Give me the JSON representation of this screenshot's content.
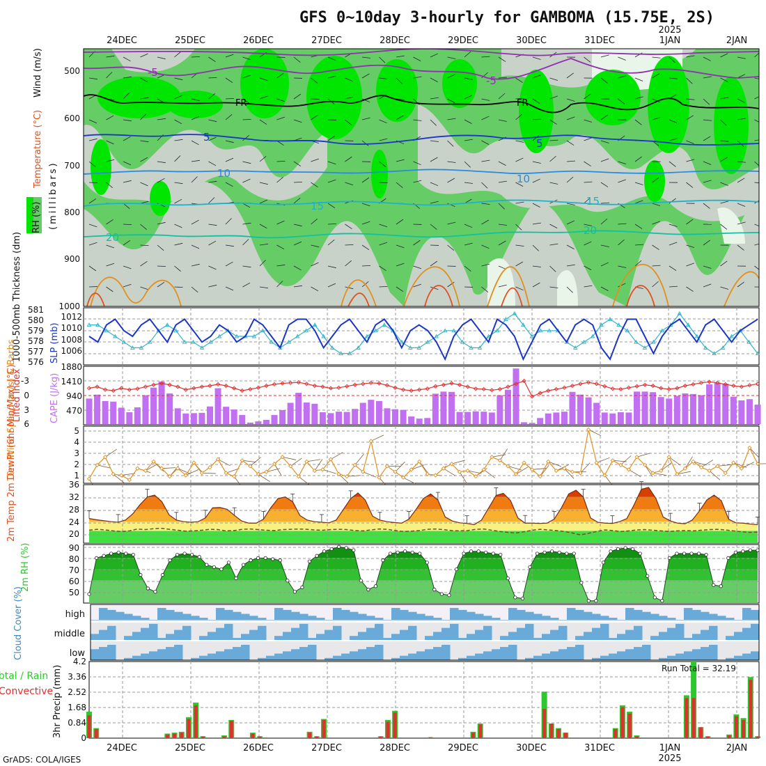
{
  "title": "GFS 0~10day 3-hourly for GAMBOMA (15.75E, 2S)",
  "footer": "GrADS: COLA/IGES",
  "dates": [
    "24DEC",
    "25DEC",
    "26DEC",
    "27DEC",
    "28DEC",
    "29DEC",
    "30DEC",
    "31DEC",
    "1JAN",
    "2JAN"
  ],
  "year_label": "2025",
  "colors": {
    "rh_dark": "#00e600",
    "rh_mid": "#66cc66",
    "rh_light": "#99dd99",
    "rh_gray": "#c8d2c8",
    "rh_pale": "#eaf5ea",
    "slp": "#1a35c8",
    "thickness": "#33b5c8",
    "cape": "#c070f0",
    "lifted_index": "#e03030",
    "wind10": "#e09020",
    "temp_dark": "#d84000",
    "temp_mid": "#f07b10",
    "temp_light": "#f8b030",
    "temp_pale": "#f8f080",
    "dewpt_band": "#40e040",
    "cloud": "#6aaad8",
    "precip_total": "#2ec82e",
    "precip_conv": "#e03030"
  },
  "labels": {
    "wind": "Wind (m/s)",
    "temperature": "Temperature (°C)",
    "rh": "RH (%)",
    "millibars": "(millibars)",
    "thickness": "1000-500mb Thickness (dm)",
    "slp": "SLP (mb)",
    "lifted_index": "Lifted Index",
    "cape": "CAPE (J/kg)",
    "wind10": "10m Wind Speed (m/s) & Barbs",
    "temp2m": "2m Temp 2m DewPt (6hr Min/Max) (°C)",
    "rh2m": "2m RH (%)",
    "cloud": "Cloud Cover (%)",
    "precip_side": "Total / Rain Convective",
    "precip_axis": "3hr Precip (mm)",
    "run_total": "Run Total = 32.19",
    "contour_labels": [
      "-5",
      "-5",
      "FR",
      "FR",
      "5",
      "5",
      "10",
      "10",
      "15",
      "15",
      "20",
      "20"
    ]
  },
  "chart_data": [
    {
      "type": "heatmap",
      "name": "upper_air_rh_temp_wind",
      "ylabel": "(millibars)",
      "y_ticks": [
        500,
        600,
        700,
        800,
        900,
        1000
      ],
      "ylim": [
        1000,
        450
      ],
      "isotherms": [
        {
          "label": "-5",
          "pressure_mb": 490
        },
        {
          "label": "FR",
          "pressure_mb": 575
        },
        {
          "label": "5",
          "pressure_mb": 645
        },
        {
          "label": "10",
          "pressure_mb": 710
        },
        {
          "label": "15",
          "pressure_mb": 775
        },
        {
          "label": "20",
          "pressure_mb": 850
        }
      ]
    },
    {
      "type": "line",
      "name": "slp_thickness",
      "series": [
        {
          "name": "SLP (mb)",
          "values": [
            1009,
            1008,
            1011,
            1012,
            1010,
            1009,
            1011,
            1012,
            1010,
            1008,
            1011,
            1012,
            1010,
            1008,
            1009,
            1011,
            1010,
            1008,
            1009,
            1012,
            1011,
            1009,
            1007,
            1011,
            1012,
            1012,
            1010,
            1007,
            1009,
            1011,
            1012,
            1010,
            1008,
            1011,
            1012,
            1010,
            1007,
            1010,
            1011,
            1010,
            1008,
            1005,
            1009,
            1011,
            1012,
            1010,
            1008,
            1012,
            1011,
            1009,
            1005,
            1008,
            1011,
            1012,
            1010,
            1008,
            1011,
            1012,
            1011,
            1007,
            1005,
            1009,
            1012,
            1012,
            1009,
            1006,
            1009,
            1011,
            1012,
            1010,
            1008,
            1011,
            1012,
            1010,
            1008,
            1010,
            1011,
            1012
          ]
        },
        {
          "name": "1000-500mb Thickness (dm)",
          "values": [
            579.5,
            579.5,
            579,
            578.5,
            578,
            577.5,
            577.5,
            578,
            579,
            579.5,
            579,
            578,
            578,
            577.5,
            578,
            578.5,
            579,
            578.5,
            578.5,
            578.5,
            579,
            578,
            577.5,
            578,
            578.5,
            579,
            579.5,
            578.5,
            577.5,
            577,
            577,
            577.5,
            578.5,
            579,
            579.5,
            579,
            578,
            577.5,
            577.5,
            578,
            578.5,
            579,
            579,
            578,
            577.5,
            577.5,
            578.5,
            579,
            580,
            580.5,
            579.5,
            578.5,
            579,
            579,
            579,
            578,
            577.5,
            578,
            578.5,
            579.5,
            580,
            579.5,
            579,
            578,
            577.5,
            578,
            579,
            579.5,
            580.5,
            579.5,
            578.5,
            577.5,
            577,
            577.5,
            578.5,
            579,
            578,
            577
          ]
        }
      ],
      "ylim_left": [
        576,
        581
      ],
      "ylim_right": [
        1004,
        1014
      ]
    },
    {
      "type": "bar",
      "name": "cape_lifted_index",
      "cape_ticks": [
        470,
        940,
        1410,
        1880
      ],
      "li_ticks": [
        -3,
        0,
        3,
        6
      ],
      "cape_values": [
        840,
        970,
        760,
        740,
        540,
        390,
        550,
        950,
        1200,
        1400,
        1010,
        520,
        350,
        360,
        370,
        580,
        1180,
        570,
        480,
        300,
        50,
        90,
        140,
        300,
        460,
        700,
        1030,
        710,
        670,
        390,
        360,
        410,
        400,
        500,
        700,
        800,
        760,
        520,
        490,
        470,
        250,
        180,
        200,
        1000,
        1070,
        1060,
        400,
        400,
        420,
        410,
        380,
        950,
        1130,
        1830,
        60,
        40,
        200,
        350,
        380,
        410,
        1060,
        970,
        880,
        700,
        380,
        350,
        390,
        380,
        1070,
        1070,
        1050,
        890,
        840,
        930,
        1010,
        990,
        950,
        1310,
        1370,
        1330,
        900,
        780,
        820,
        640
      ],
      "li_values": [
        -1.5,
        -1.8,
        -1.2,
        -1.0,
        -1.5,
        -1.2,
        -1.4,
        -1.8,
        -2.2,
        -2.5,
        -2.2,
        -1.8,
        -1.2,
        -1.5,
        -1.8,
        -2.0,
        -2.3,
        -2.0,
        -1.5,
        -1.0,
        -1.3,
        -1.6,
        -2.0,
        -2.3,
        -2.5,
        -2.6,
        -2.7,
        -2.4,
        -2.0,
        -1.8,
        -1.5,
        -1.6,
        -1.9,
        -2.2,
        -2.4,
        -2.6,
        -2.5,
        -2.1,
        -1.6,
        -1.2,
        -1.0,
        -1.2,
        -1.4,
        -1.9,
        -2.2,
        -2.5,
        -2.2,
        -1.8,
        -1.4,
        -1.3,
        -1.1,
        -1.3,
        -1.8,
        -2.4,
        -3.0,
        0.2,
        -0.5,
        -1.0,
        -1.3,
        -1.6,
        -2.0,
        -2.4,
        -2.7,
        -2.4,
        -1.9,
        -1.4,
        -1.3,
        -1.6,
        -1.9,
        -2.2,
        -2.0,
        -1.5,
        -1.3,
        -1.5,
        -2.0,
        -2.3,
        -2.6,
        -2.8,
        -2.6,
        -2.3,
        -2.0,
        -1.8,
        -2.1,
        -2.4
      ]
    },
    {
      "type": "line",
      "name": "wind_10m",
      "y_ticks": [
        1,
        2,
        3,
        4,
        5
      ],
      "values": [
        0.9,
        2.1,
        2.8,
        1.3,
        1.2,
        0.8,
        1.8,
        1.6,
        2.4,
        1.8,
        1.1,
        1.8,
        1.2,
        2.3,
        1.4,
        1.9,
        2.6,
        1.4,
        1.1,
        2.5,
        2.0,
        1.3,
        1.5,
        2.2,
        2.8,
        2.0,
        1.1,
        2.4,
        1.6,
        1.7,
        2.6,
        1.3,
        1.1,
        2.1,
        1.5,
        4.2,
        1.0,
        2.0,
        1.5,
        1.0,
        1.7,
        2.4,
        1.3,
        1.2,
        1.8,
        2.2,
        1.5,
        1.6,
        1.1,
        1.7,
        2.8,
        2.5,
        2.0,
        1.3,
        2.3,
        1.7,
        1.1,
        2.4,
        1.6,
        1.8,
        1.5,
        1.4,
        5.2,
        2.3,
        1.2,
        2.5,
        2.1,
        1.7,
        2.8,
        2.1,
        1.4,
        1.6,
        2.8,
        1.3,
        1.8,
        2.4,
        1.9,
        1.6,
        2.0,
        1.4,
        2.3,
        1.8,
        3.6,
        2.2
      ]
    },
    {
      "type": "area",
      "name": "temp_2m",
      "y_ticks": [
        20,
        24,
        28,
        32,
        36
      ],
      "ylim": [
        17,
        36
      ],
      "temp_values": [
        25,
        24.6,
        24.3,
        24,
        23.8,
        24.5,
        26.5,
        29.5,
        32,
        32.6,
        30.5,
        26.2,
        24.5,
        24,
        23.8,
        24,
        25.2,
        28.5,
        28.6,
        28,
        26,
        24.2,
        23.5,
        23.5,
        24.8,
        28.5,
        31.5,
        32,
        30.5,
        26,
        24.5,
        24,
        23.8,
        23.6,
        24.5,
        28,
        31.5,
        33.3,
        31,
        25.8,
        24.5,
        24,
        23.7,
        23.5,
        24.8,
        28,
        31.5,
        33,
        31,
        25.5,
        24.2,
        23.6,
        23.4,
        23,
        24.5,
        28.5,
        32.5,
        33.2,
        30.8,
        25.2,
        23.5,
        23.5,
        23.4,
        23.5,
        24.8,
        28.5,
        33,
        34.2,
        32,
        25.2,
        23.8,
        23.5,
        23.4,
        24,
        25,
        29.5,
        34.5,
        35.1,
        31.5,
        25.5,
        24.2,
        23.5,
        23.3,
        24.5,
        27.5,
        31,
        32.6,
        30.8,
        24.8,
        23.6,
        23.5,
        23.2,
        23
      ],
      "dewpt_values": [
        21.2,
        21.5,
        21.3,
        21,
        20.8,
        21,
        21.6,
        21.4,
        21.7,
        21.8,
        21.5,
        21.2,
        20.9,
        21,
        21.2,
        21.5,
        21.4,
        21,
        21.1,
        21.5,
        21.6,
        21.4,
        21.2,
        21.1,
        21.4,
        21.5,
        21.6,
        21.5,
        21.3,
        21.2,
        21.4,
        21.5,
        21.4,
        21.1,
        21,
        21.3,
        21.6,
        21.5,
        21.1,
        20.8,
        20.9,
        21.1,
        21.5,
        21.6,
        21.4,
        21.1,
        21,
        21.1,
        21.5,
        21.6,
        21.2,
        20.8,
        20.5,
        20.3,
        20.7,
        21.2,
        21.5,
        21.3,
        21.1,
        20.8,
        20.3,
        19.7,
        20.2,
        20.8,
        21.3,
        21.1,
        20.8,
        21,
        21.3,
        21.4,
        21.2,
        21,
        20.8,
        21,
        21.1,
        21,
        21.2,
        21.4,
        21.5,
        21.3,
        21,
        20.7,
        20.5,
        20.6
      ]
    },
    {
      "type": "area",
      "name": "rh_2m",
      "y_ticks": [
        50,
        60,
        70,
        80,
        90
      ],
      "ylim": [
        40,
        92
      ],
      "values": [
        48,
        80,
        82,
        84,
        85,
        84,
        83,
        65,
        53,
        50,
        65,
        78,
        83,
        84,
        83,
        81,
        74,
        72,
        70,
        76,
        62,
        74,
        78,
        80,
        80,
        79,
        78,
        60,
        50,
        54,
        77,
        82,
        86,
        88,
        90,
        89,
        87,
        60,
        52,
        55,
        78,
        84,
        85,
        86,
        85,
        84,
        76,
        52,
        48,
        47,
        70,
        84,
        86,
        86,
        85,
        84,
        83,
        62,
        45,
        44,
        72,
        84,
        85,
        86,
        85,
        84,
        84,
        58,
        42,
        42,
        76,
        86,
        88,
        89,
        88,
        84,
        64,
        45,
        42,
        80,
        84,
        84,
        84,
        84,
        83,
        56,
        55,
        80,
        85,
        86,
        87,
        87
      ]
    },
    {
      "type": "heatmap",
      "name": "cloud_cover",
      "rows": [
        "high",
        "middle",
        "low"
      ]
    },
    {
      "type": "bar",
      "name": "precip_3hr",
      "y_ticks": [
        0,
        0.84,
        1.68,
        2.52,
        3.36,
        4.2
      ],
      "ylim": [
        0,
        4.2
      ],
      "total": [
        1.45,
        0.55,
        0,
        0,
        0,
        0,
        0,
        0,
        0,
        0,
        0,
        0.25,
        0.3,
        0.35,
        1.15,
        1.95,
        0.1,
        0,
        0,
        0.15,
        1.0,
        0,
        0,
        0.3,
        0.1,
        0,
        0,
        0,
        0,
        0,
        0,
        0.35,
        0.1,
        1.05,
        0,
        0,
        0,
        0,
        0,
        0,
        0,
        0.1,
        1.0,
        1.5,
        0,
        0,
        0,
        0,
        0.05,
        0,
        0,
        0,
        0,
        0,
        0.35,
        0.8,
        0,
        0,
        0,
        0,
        0,
        0,
        0,
        0,
        2.55,
        0.8,
        0.55,
        0.3,
        0,
        0,
        0,
        0,
        0,
        0,
        0.55,
        1.8,
        1.45,
        0.15,
        0,
        0,
        0,
        0,
        0,
        0,
        2.35,
        4.2,
        0.6,
        0.1,
        0,
        0,
        0.2,
        1.3,
        1.1,
        3.35,
        0.1
      ],
      "convective": [
        1.25,
        0.5,
        0,
        0,
        0,
        0,
        0,
        0,
        0,
        0,
        0,
        0.2,
        0.25,
        0.3,
        1.05,
        1.8,
        0.1,
        0,
        0,
        0.1,
        0.95,
        0,
        0,
        0.25,
        0.1,
        0,
        0,
        0,
        0,
        0,
        0,
        0.3,
        0.1,
        1.0,
        0,
        0,
        0,
        0,
        0,
        0,
        0,
        0.1,
        0.9,
        1.4,
        0,
        0,
        0,
        0,
        0.05,
        0,
        0,
        0,
        0,
        0,
        0.3,
        0.75,
        0,
        0,
        0,
        0,
        0,
        0,
        0,
        0,
        1.6,
        0.8,
        0.5,
        0.3,
        0,
        0,
        0,
        0,
        0,
        0,
        0.5,
        1.7,
        1.35,
        0.1,
        0,
        0,
        0,
        0,
        0,
        0,
        2.2,
        2.2,
        0.6,
        0.1,
        0,
        0,
        0.15,
        1.2,
        1.0,
        3.2,
        0.1
      ]
    }
  ]
}
